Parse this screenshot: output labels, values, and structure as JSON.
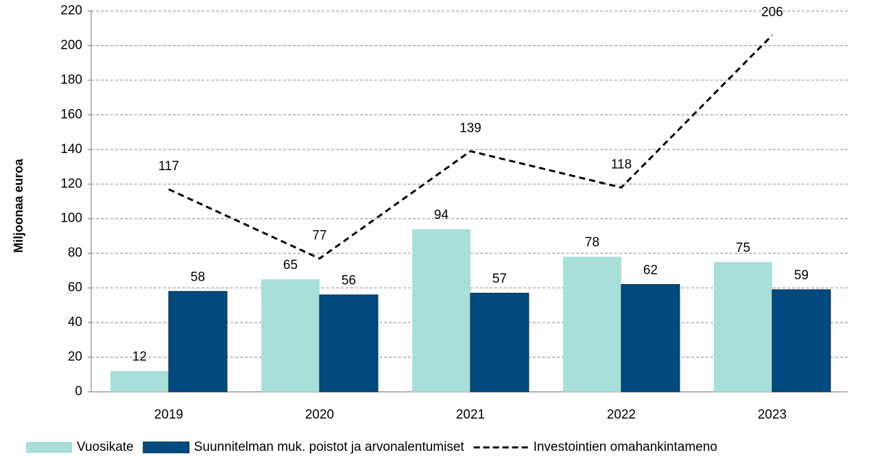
{
  "chart_data": {
    "type": "bar",
    "y_label": "Miljoonaa euroa",
    "categories": [
      "2019",
      "2020",
      "2021",
      "2022",
      "2023"
    ],
    "series": [
      {
        "name": "Vuosikate",
        "type": "bar",
        "color": "#a8dfd9",
        "values": [
          12,
          65,
          94,
          78,
          75
        ]
      },
      {
        "name": "Suunnitelman muk. poistot ja arvonalentumiset",
        "type": "bar",
        "color": "#004a80",
        "values": [
          58,
          56,
          57,
          62,
          59
        ]
      },
      {
        "name": "Investointien omahankintameno",
        "type": "line",
        "color": "#000000",
        "values": [
          117,
          77,
          139,
          118,
          206
        ]
      }
    ],
    "ylim": [
      0,
      220
    ],
    "yticks": [
      0,
      20,
      40,
      60,
      80,
      100,
      120,
      140,
      160,
      180,
      200,
      220
    ],
    "grid": true,
    "legend": "bottom"
  }
}
